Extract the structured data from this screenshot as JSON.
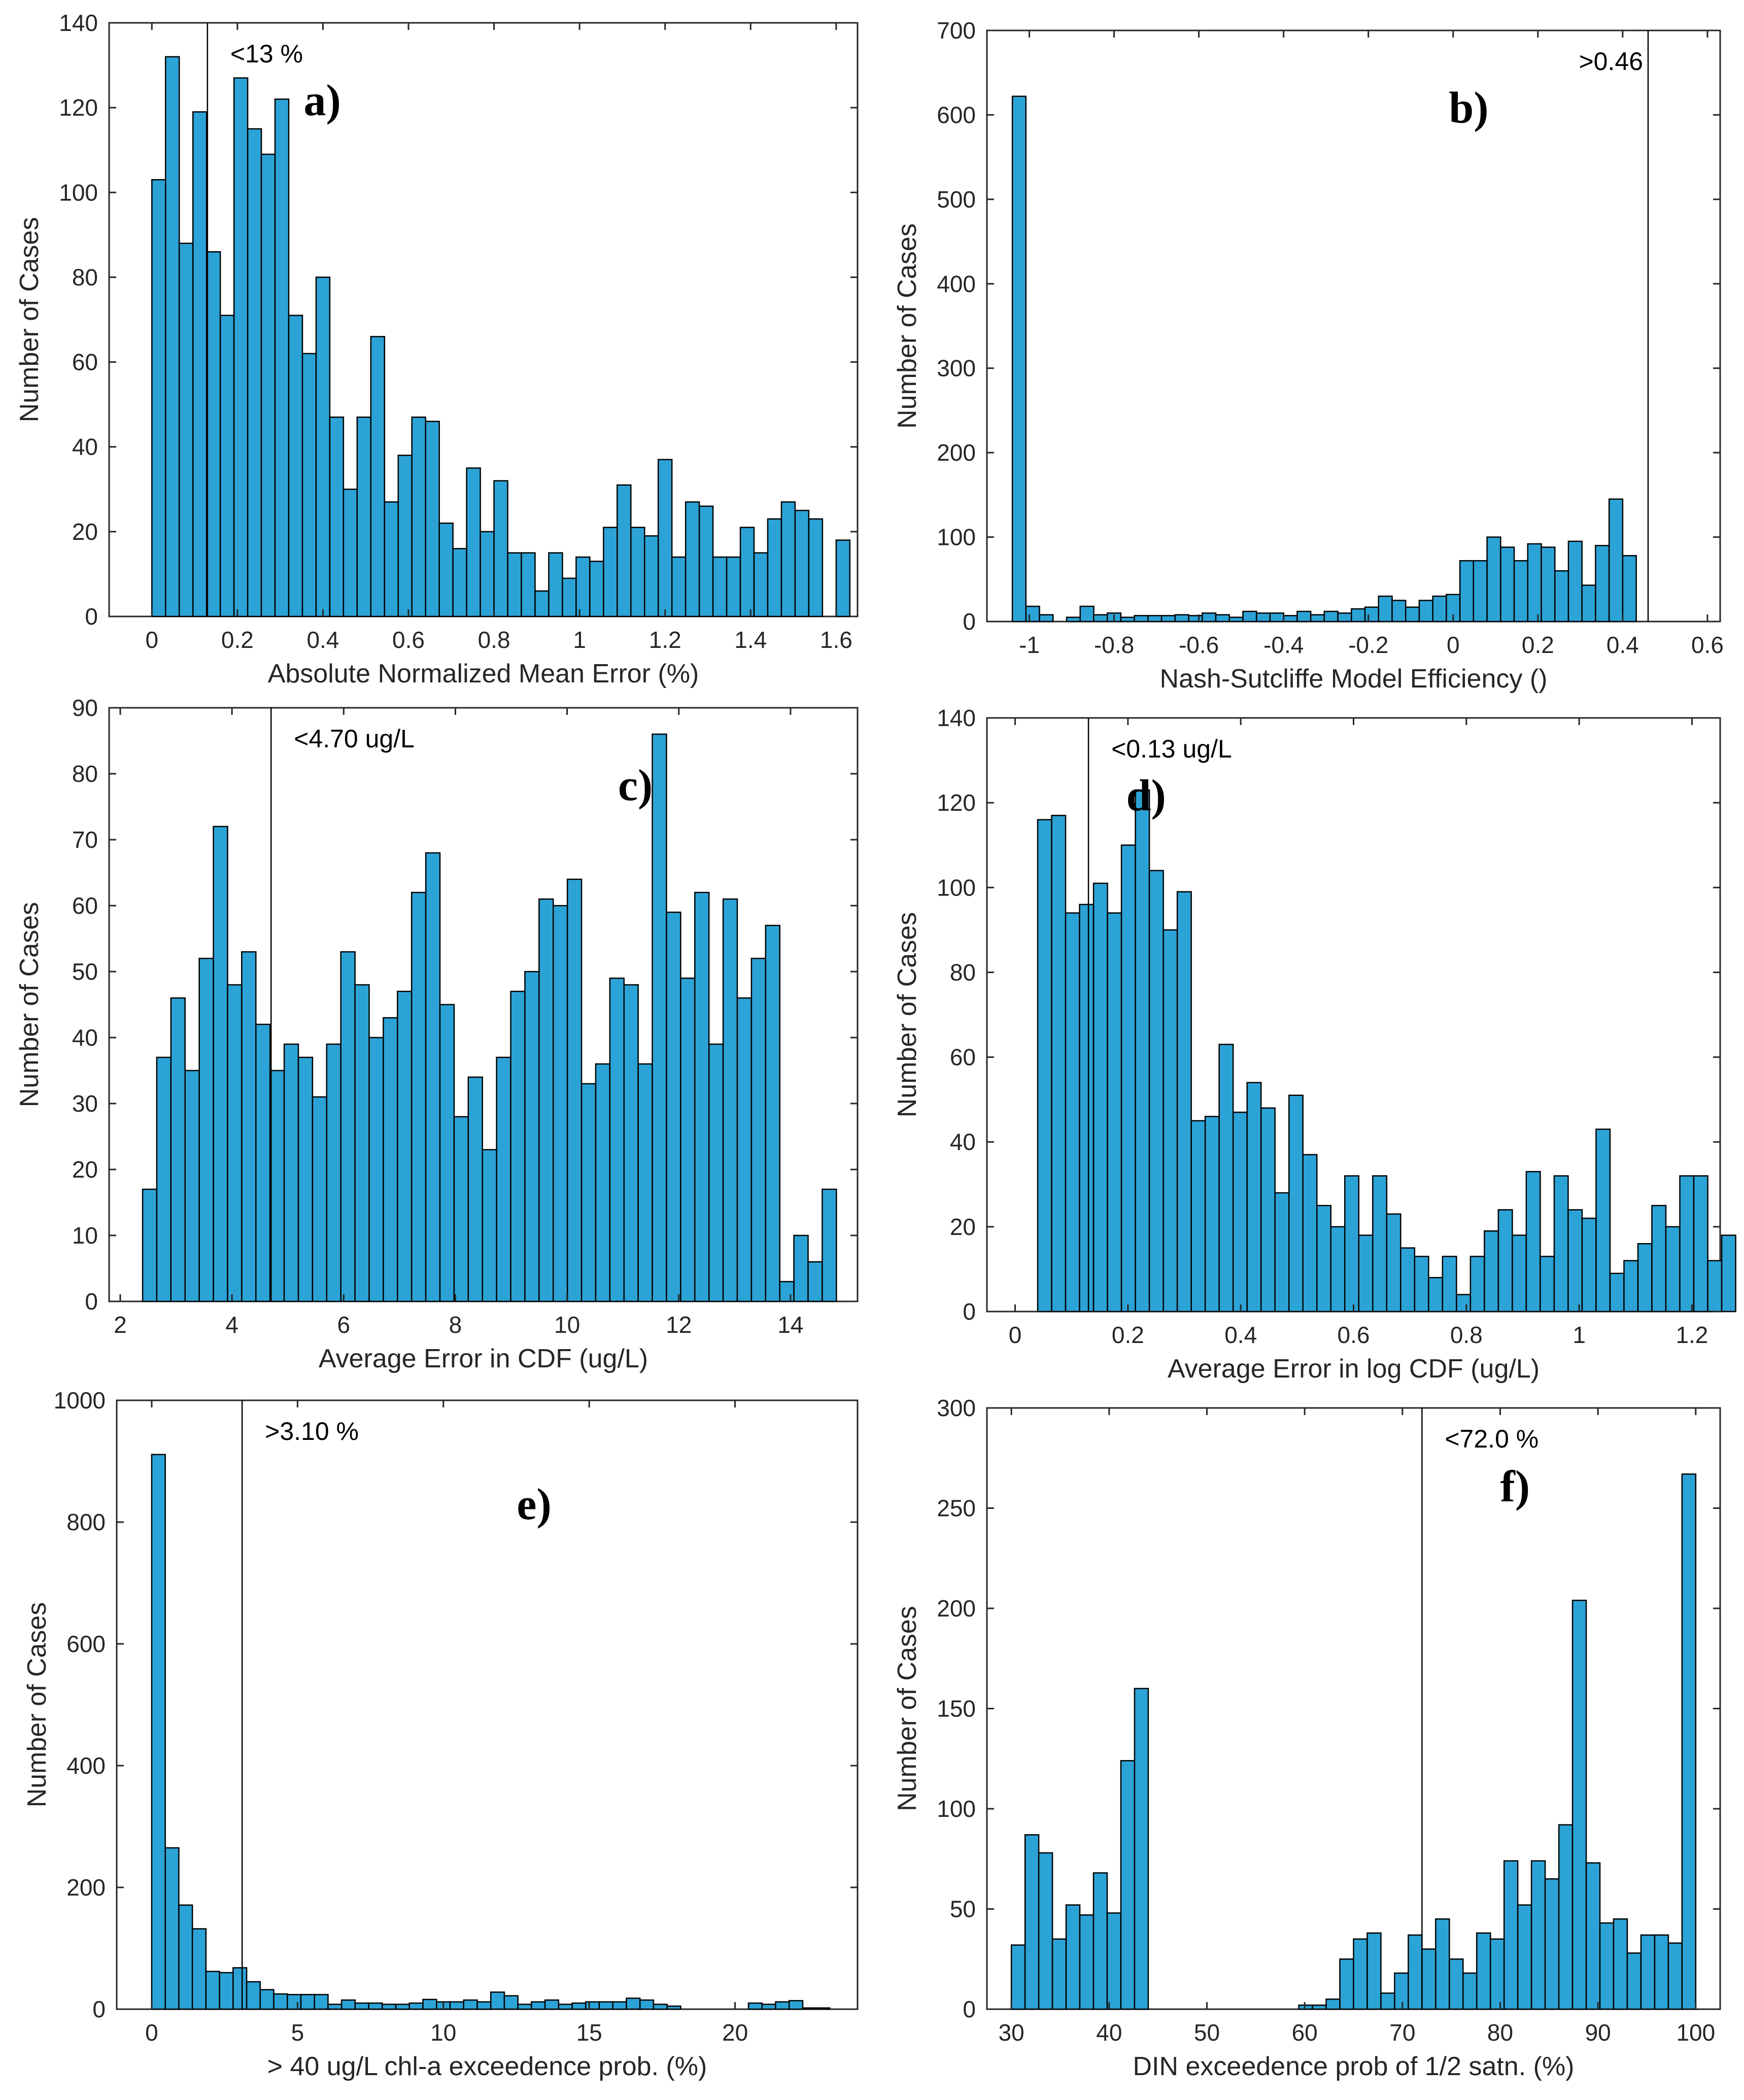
{
  "figure": {
    "bar_color": "#2ca3d6",
    "bar_edge": "#000000"
  },
  "chart_data": [
    {
      "id": "a",
      "type": "bar",
      "panel_label": "a)",
      "xlabel": "Absolute Normalized Mean Error   (%)",
      "ylabel": "Number of Cases",
      "xlim": [
        -0.1,
        1.65
      ],
      "ylim": [
        0,
        140
      ],
      "xticks": [
        0,
        0.2,
        0.4,
        0.6,
        0.8,
        1,
        1.2,
        1.4,
        1.6
      ],
      "xtick_labels": [
        "0",
        "0.2",
        "0.4",
        "0.6",
        "0.8",
        "1",
        "1.2",
        "1.4",
        "1.6"
      ],
      "yticks": [
        0,
        20,
        40,
        60,
        80,
        100,
        120,
        140
      ],
      "ytick_labels": [
        "0",
        "20",
        "40",
        "60",
        "80",
        "100",
        "120",
        "140"
      ],
      "bin_start": 0.0,
      "bin_width": 0.032,
      "values": [
        103,
        132,
        88,
        119,
        86,
        71,
        127,
        115,
        109,
        122,
        71,
        62,
        80,
        47,
        30,
        47,
        66,
        27,
        38,
        47,
        46,
        22,
        16,
        35,
        20,
        32,
        15,
        15,
        6,
        15,
        9,
        14,
        13,
        21,
        31,
        21,
        19,
        37,
        14,
        27,
        26,
        14,
        14,
        21,
        15,
        23,
        27,
        25,
        23,
        0,
        18
      ],
      "threshold": {
        "value": 0.13,
        "label": "<13 %"
      }
    },
    {
      "id": "b",
      "type": "bar",
      "panel_label": "b)",
      "xlabel": "Nash-Sutcliffe Model Efficiency    ()",
      "ylabel": "Number of Cases",
      "xlim": [
        -1.1,
        0.63
      ],
      "ylim": [
        0,
        700
      ],
      "xticks": [
        -1,
        -0.8,
        -0.6,
        -0.4,
        -0.2,
        0,
        0.2,
        0.4,
        0.6
      ],
      "xtick_labels": [
        "-1",
        "-0.8",
        "-0.6",
        "-0.4",
        "-0.2",
        "0",
        "0.2",
        "0.4",
        "0.6"
      ],
      "yticks": [
        0,
        100,
        200,
        300,
        400,
        500,
        600,
        700
      ],
      "ytick_labels": [
        "0",
        "100",
        "200",
        "300",
        "400",
        "500",
        "600",
        "700"
      ],
      "bin_start": -1.04,
      "bin_width": 0.032,
      "values": [
        622,
        18,
        8,
        0,
        5,
        18,
        8,
        10,
        5,
        7,
        7,
        7,
        8,
        7,
        10,
        8,
        5,
        12,
        10,
        10,
        7,
        12,
        8,
        12,
        10,
        15,
        17,
        30,
        25,
        17,
        25,
        30,
        32,
        72,
        72,
        100,
        88,
        72,
        92,
        88,
        60,
        95,
        43,
        90,
        145,
        78
      ],
      "threshold": {
        "value": 0.46,
        "label": ">0.46"
      }
    },
    {
      "id": "c",
      "type": "bar",
      "panel_label": "c)",
      "xlabel": "Average Error in CDF (ug/L)",
      "ylabel": "Number of Cases",
      "xlim": [
        1.8,
        15.2
      ],
      "ylim": [
        0,
        90
      ],
      "xticks": [
        2,
        4,
        6,
        8,
        10,
        12,
        14
      ],
      "xtick_labels": [
        "2",
        "4",
        "6",
        "8",
        "10",
        "12",
        "14"
      ],
      "yticks": [
        0,
        10,
        20,
        30,
        40,
        50,
        60,
        70,
        80,
        90
      ],
      "ytick_labels": [
        "0",
        "10",
        "20",
        "30",
        "40",
        "50",
        "60",
        "70",
        "80",
        "90"
      ],
      "bin_start": 2.4,
      "bin_width": 0.2535,
      "values": [
        17,
        37,
        46,
        35,
        52,
        72,
        48,
        53,
        42,
        35,
        39,
        37,
        31,
        39,
        53,
        48,
        40,
        43,
        47,
        62,
        68,
        45,
        28,
        34,
        23,
        37,
        47,
        50,
        61,
        60,
        64,
        33,
        36,
        49,
        48,
        36,
        86,
        59,
        49,
        62,
        39,
        61,
        46,
        52,
        57,
        3,
        10,
        6,
        17
      ],
      "threshold": {
        "value": 4.7,
        "label": "<4.70 ug/L"
      }
    },
    {
      "id": "d",
      "type": "bar",
      "panel_label": "d)",
      "xlabel": "Average Error in log CDF (ug/L)",
      "ylabel": "Number of Cases",
      "xlim": [
        -0.05,
        1.25
      ],
      "ylim": [
        0,
        140
      ],
      "xticks": [
        0,
        0.2,
        0.4,
        0.6,
        0.8,
        1,
        1.2
      ],
      "xtick_labels": [
        "0",
        "0.2",
        "0.4",
        "0.6",
        "0.8",
        "1",
        "1.2"
      ],
      "yticks": [
        0,
        20,
        40,
        60,
        80,
        100,
        120,
        140
      ],
      "ytick_labels": [
        "0",
        "20",
        "40",
        "60",
        "80",
        "100",
        "120",
        "140"
      ],
      "bin_start": 0.04,
      "bin_width": 0.02475,
      "values": [
        116,
        117,
        94,
        96,
        101,
        94,
        110,
        123,
        104,
        90,
        99,
        45,
        46,
        63,
        47,
        54,
        48,
        28,
        51,
        37,
        25,
        20,
        32,
        18,
        32,
        23,
        15,
        13,
        8,
        13,
        4,
        13,
        19,
        24,
        18,
        33,
        13,
        32,
        24,
        22,
        43,
        9,
        12,
        16,
        25,
        20,
        32,
        32,
        12,
        18
      ],
      "threshold": {
        "value": 0.13,
        "label": "<0.13 ug/L"
      }
    },
    {
      "id": "e",
      "type": "bar",
      "panel_label": "e)",
      "xlabel": "> 40 ug/L chl-a exceedence prob. (%)",
      "ylabel": "Number of Cases",
      "xlim": [
        -1.2,
        24.2
      ],
      "ylim": [
        0,
        1000
      ],
      "xticks": [
        0,
        5,
        10,
        15,
        20
      ],
      "xtick_labels": [
        "0",
        "5",
        "10",
        "15",
        "20"
      ],
      "yticks": [
        0,
        200,
        400,
        600,
        800,
        1000
      ],
      "ytick_labels": [
        "0",
        "200",
        "400",
        "600",
        "800",
        "1000"
      ],
      "bin_start": 0.0,
      "bin_width": 0.465,
      "values": [
        911,
        265,
        171,
        132,
        62,
        60,
        68,
        45,
        32,
        25,
        24,
        24,
        24,
        8,
        15,
        10,
        10,
        8,
        8,
        10,
        16,
        12,
        12,
        15,
        12,
        28,
        22,
        8,
        12,
        15,
        8,
        10,
        12,
        12,
        12,
        18,
        15,
        8,
        5,
        0,
        0,
        0,
        0,
        0,
        10,
        8,
        12,
        14,
        2,
        2
      ],
      "threshold": {
        "value": 3.1,
        "label": ">3.10 %"
      }
    },
    {
      "id": "f",
      "type": "bar",
      "panel_label": "f)",
      "xlabel": "DIN exceedence prob of 1/2 satn. (%)",
      "ylabel": "Number of Cases",
      "xlim": [
        27.5,
        102.5
      ],
      "ylim": [
        0,
        300
      ],
      "xticks": [
        30,
        40,
        50,
        60,
        70,
        80,
        90,
        100
      ],
      "xtick_labels": [
        "30",
        "40",
        "50",
        "60",
        "70",
        "80",
        "90",
        "100"
      ],
      "yticks": [
        0,
        50,
        100,
        150,
        200,
        250,
        300
      ],
      "ytick_labels": [
        "0",
        "50",
        "100",
        "150",
        "200",
        "250",
        "300"
      ],
      "bin_start": 30.0,
      "bin_width": 1.4,
      "values": [
        32,
        87,
        78,
        35,
        52,
        47,
        68,
        48,
        124,
        160,
        0,
        0,
        0,
        0,
        0,
        0,
        0,
        0,
        0,
        0,
        0,
        2,
        2,
        5,
        25,
        35,
        38,
        8,
        18,
        37,
        30,
        45,
        25,
        18,
        38,
        35,
        74,
        52,
        74,
        65,
        92,
        204,
        73,
        43,
        45,
        28,
        37,
        37,
        33,
        267
      ],
      "threshold": {
        "value": 72.0,
        "label": "<72.0 %"
      }
    }
  ]
}
